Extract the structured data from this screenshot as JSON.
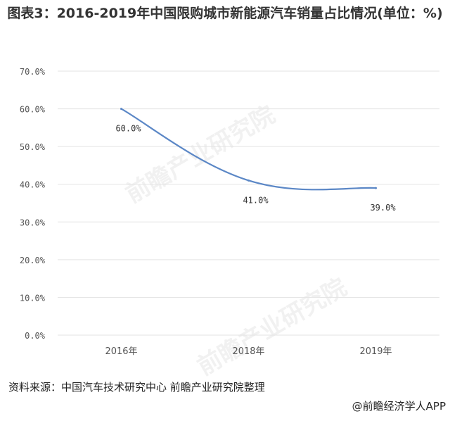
{
  "chart_data": {
    "type": "line",
    "title": "图表3：2016-2019年中国限购城市新能源汽车销量占比情况(单位：%)",
    "categories": [
      "2016年",
      "2018年",
      "2019年"
    ],
    "series": [
      {
        "values": [
          60.0,
          41.0,
          39.0
        ],
        "labels": [
          "60.0%",
          "41.0%",
          "39.0%"
        ]
      }
    ],
    "y_ticks": [
      "0.0%",
      "10.0%",
      "20.0%",
      "30.0%",
      "40.0%",
      "50.0%",
      "60.0%",
      "70.0%"
    ],
    "ylim": [
      0,
      70
    ],
    "grid": true,
    "legend": "none",
    "line_color": "#5B87C6",
    "grid_color": "#E3E3E3"
  },
  "footer": {
    "source": "资料来源：中国汽车技术研究中心 前瞻产业研究院整理",
    "brand": "@前瞻经济学人APP"
  },
  "watermark": "前瞻产业研究院"
}
